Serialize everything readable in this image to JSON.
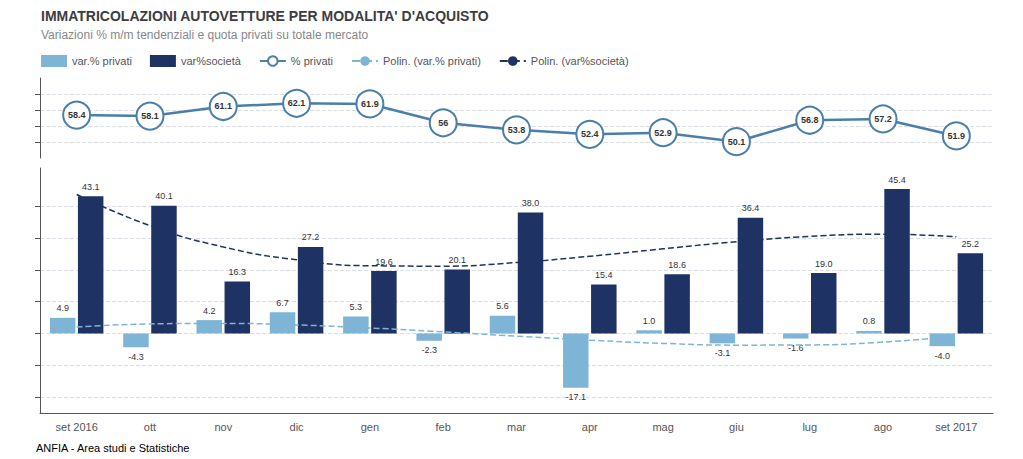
{
  "chart_data": [
    {
      "type": "bar",
      "title": "IMMATRICOLAZIONI AUTOVETTURE PER MODALITA' D'ACQUISTO",
      "subtitle": "Variazioni % m/m tendenziali e quota privati su totale mercato",
      "footer": "ANFIA - Area studi e Statistiche",
      "categories": [
        "set 2016",
        "ott",
        "nov",
        "dic",
        "gen",
        "feb",
        "mar",
        "apr",
        "mag",
        "giu",
        "lug",
        "ago",
        "set 2017"
      ],
      "series": [
        {
          "name": "var.% privati",
          "type": "bar",
          "color": "#7eb5d6",
          "values": [
            4.9,
            -4.3,
            4.2,
            6.7,
            5.3,
            -2.3,
            5.6,
            -17.1,
            1.0,
            -3.1,
            -1.6,
            0.8,
            -4.0
          ],
          "value_labels": [
            "4.9",
            "-4.3",
            "4.2",
            "6.7",
            "5.3",
            "-2.3",
            "5.6",
            "-17.1",
            "1.0",
            "-3.1",
            "-1.6",
            "0.8",
            "-4.0"
          ]
        },
        {
          "name": "var%società",
          "type": "bar",
          "color": "#1e3264",
          "values": [
            43.1,
            40.1,
            16.3,
            27.2,
            19.6,
            20.1,
            38.0,
            15.4,
            18.6,
            36.4,
            19.0,
            45.4,
            25.2
          ],
          "value_labels": [
            "43.1",
            "40.1",
            "16.3",
            "27.2",
            "19.6",
            "20.1",
            "38.0",
            "15.4",
            "18.6",
            "36.4",
            "19.0",
            "45.4",
            "25.2"
          ]
        },
        {
          "name": "Polin. (var.% privati)",
          "type": "line",
          "color": "#7eb5d6",
          "line_style": "dashed",
          "values": [
            1.99,
            2.99,
            3.16,
            2.68,
            1.73,
            0.49,
            -0.85,
            -2.12,
            -3.12,
            -3.67,
            -3.6,
            -2.72,
            -0.84
          ]
        },
        {
          "name": "Polin. (var%società)",
          "type": "line",
          "color": "#1e3264",
          "line_style": "dashed",
          "values": [
            43.68,
            33.89,
            27.19,
            23.14,
            21.28,
            21.15,
            22.3,
            24.26,
            26.59,
            28.82,
            30.51,
            31.19,
            30.4
          ]
        }
      ],
      "ylim": [
        -25,
        52
      ],
      "yticks": [
        -20,
        -10,
        0,
        10,
        20,
        30,
        40
      ],
      "grid": true,
      "data_labels": true,
      "tick_labels": "x",
      "legend": "upper left"
    },
    {
      "type": "line",
      "categories": [
        "set 2016",
        "ott",
        "nov",
        "dic",
        "gen",
        "feb",
        "mar",
        "apr",
        "mag",
        "giu",
        "lug",
        "ago",
        "set 2017"
      ],
      "series": [
        {
          "name": "% privati",
          "color": "#4a7faa",
          "marker": "circle",
          "values": [
            58.4,
            58.1,
            61.1,
            62.1,
            61.9,
            56.0,
            53.8,
            52.4,
            52.9,
            50.1,
            56.8,
            57.2,
            51.9
          ]
        }
      ],
      "ylim": [
        45,
        70
      ],
      "yticks": [
        50,
        55,
        60,
        65
      ],
      "grid": true,
      "data_labels": true,
      "tick_labels": false
    }
  ]
}
